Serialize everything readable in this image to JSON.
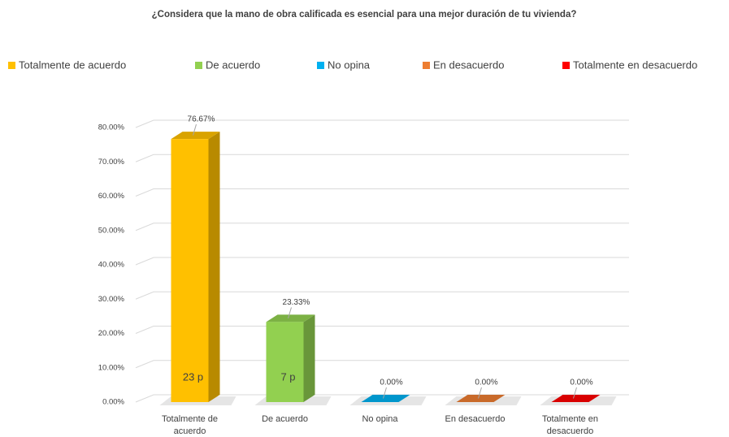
{
  "chart_data": {
    "type": "bar3d",
    "title": "¿Considera que la mano de obra calificada es esencial para una mejor duración de tu vivienda?",
    "categories": [
      "Totalmente de acuerdo",
      "De acuerdo",
      "No opina",
      "En desacuerdo",
      "Totalmente en desacuerdo"
    ],
    "values": [
      76.67,
      23.33,
      0,
      0,
      0
    ],
    "value_labels": [
      "76.67%",
      "23.33%",
      "0.00%",
      "0.00%",
      "0.00%"
    ],
    "annotations": [
      "23 p",
      "7 p",
      null,
      null,
      null
    ],
    "colors": [
      "#ffc000",
      "#92d050",
      "#00b0f0",
      "#ed7d31",
      "#ff0000"
    ],
    "ylim": [
      0,
      80
    ],
    "yticks": [
      {
        "value": 0,
        "label": "0.00%"
      },
      {
        "value": 10,
        "label": "10.00%"
      },
      {
        "value": 20,
        "label": "20.00%"
      },
      {
        "value": 30,
        "label": "30.00%"
      },
      {
        "value": 40,
        "label": "40.00%"
      },
      {
        "value": 50,
        "label": "50.00%"
      },
      {
        "value": 60,
        "label": "60.00%"
      },
      {
        "value": 70,
        "label": "70.00%"
      },
      {
        "value": 80,
        "label": "80.00%"
      }
    ],
    "grid": true,
    "legend": "top"
  }
}
